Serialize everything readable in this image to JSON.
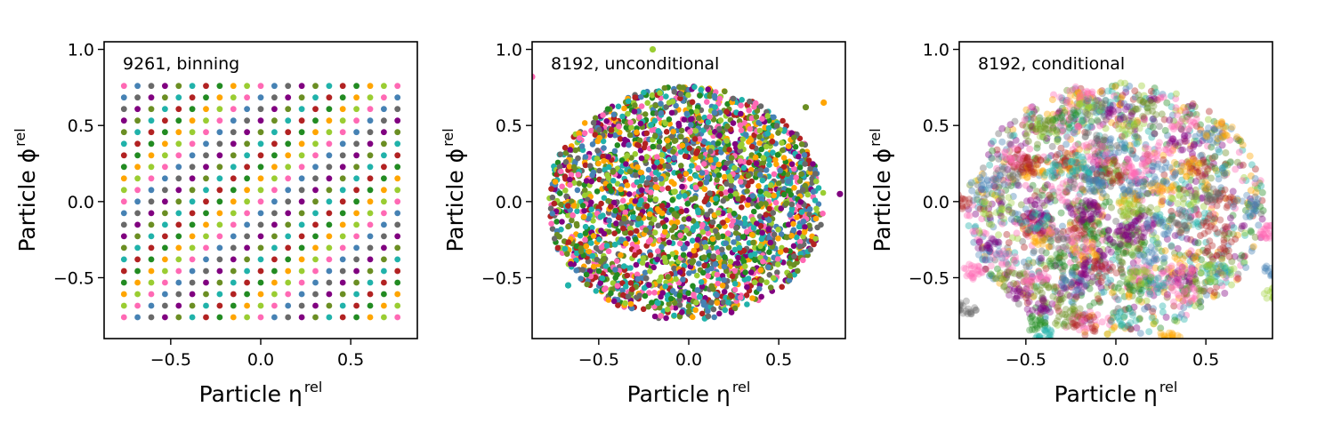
{
  "figure": {
    "background": "#ffffff",
    "palette": [
      "#ff69b4",
      "#800080",
      "#b22222",
      "#9acd32",
      "#696969",
      "#20b2aa",
      "#ffa500",
      "#4682b4",
      "#6b8e23",
      "#228b22"
    ]
  },
  "chart_data": [
    {
      "type": "scatter",
      "title": "9261, binning",
      "xlabel": "Particle η",
      "xlabel_sup": "rel",
      "ylabel": "Particle ϕ",
      "ylabel_sup": "rel",
      "xlim": [
        -0.87,
        0.87
      ],
      "ylim": [
        -0.9,
        1.05
      ],
      "xticks": [
        -0.5,
        0.0,
        0.5
      ],
      "xtick_labels": [
        "−0.5",
        "0.0",
        "0.5"
      ],
      "yticks": [
        -0.5,
        0.0,
        0.5,
        1.0
      ],
      "ytick_labels": [
        "−0.5",
        "0.0",
        "0.5",
        "1.0"
      ],
      "grid": false,
      "legend": "none",
      "distribution": "regular grid",
      "grid_points": {
        "n_x": 21,
        "n_y": 21,
        "min": -0.76,
        "max": 0.76
      }
    },
    {
      "type": "scatter",
      "title": "8192, unconditional",
      "xlabel": "Particle η",
      "xlabel_sup": "rel",
      "ylabel": "Particle ϕ",
      "ylabel_sup": "rel",
      "xlim": [
        -0.87,
        0.87
      ],
      "ylim": [
        -0.9,
        1.05
      ],
      "xticks": [
        -0.5,
        0.0,
        0.5
      ],
      "xtick_labels": [
        "−0.5",
        "0.0",
        "0.5"
      ],
      "yticks": [
        -0.5,
        0.0,
        0.5,
        1.0
      ],
      "ytick_labels": [
        "−0.5",
        "0.0",
        "0.5",
        "1.0"
      ],
      "grid": false,
      "legend": "none",
      "distribution": "filled disk",
      "disk": {
        "center": [
          -0.02,
          -0.01
        ],
        "radius": 0.77
      },
      "outliers": [
        {
          "x": -0.87,
          "y": 0.82,
          "color": "#ff69b4"
        },
        {
          "x": -0.2,
          "y": 1.0,
          "color": "#9acd32"
        },
        {
          "x": 0.75,
          "y": 0.65,
          "color": "#ffa500"
        },
        {
          "x": 0.65,
          "y": 0.62,
          "color": "#6b8e23"
        },
        {
          "x": 0.84,
          "y": 0.05,
          "color": "#800080"
        },
        {
          "x": -0.67,
          "y": -0.55,
          "color": "#20b2aa"
        }
      ]
    },
    {
      "type": "scatter",
      "title": "8192, conditional",
      "xlabel": "Particle η",
      "xlabel_sup": "rel",
      "ylabel": "Particle ϕ",
      "ylabel_sup": "rel",
      "xlim": [
        -0.87,
        0.87
      ],
      "ylim": [
        -0.9,
        1.05
      ],
      "xticks": [
        -0.5,
        0.0,
        0.5
      ],
      "xtick_labels": [
        "−0.5",
        "0.0",
        "0.5"
      ],
      "yticks": [
        -0.5,
        0.0,
        0.5,
        1.0
      ],
      "ytick_labels": [
        "−0.5",
        "0.0",
        "0.5",
        "1.0"
      ],
      "grid": false,
      "legend": "none",
      "distribution": "overlapping translucent clusters within a disk",
      "disk": {
        "center": [
          0.0,
          -0.05
        ],
        "radius": 0.83
      },
      "outer_clusters": [
        {
          "x": -0.8,
          "y": -0.46,
          "color": "#ff69b4"
        },
        {
          "x": -0.83,
          "y": -0.7,
          "color": "#696969"
        },
        {
          "x": -0.45,
          "y": -0.8,
          "color": "#228b22"
        },
        {
          "x": 0.3,
          "y": -0.89,
          "color": "#ffa500"
        },
        {
          "x": 0.85,
          "y": -0.2,
          "color": "#ff69b4"
        },
        {
          "x": 0.87,
          "y": -0.6,
          "color": "#9acd32"
        },
        {
          "x": 0.88,
          "y": -0.45,
          "color": "#4682b4"
        },
        {
          "x": -0.4,
          "y": -0.88,
          "color": "#20b2aa"
        },
        {
          "x": -0.87,
          "y": 0.0,
          "color": "#b22222"
        }
      ]
    }
  ]
}
